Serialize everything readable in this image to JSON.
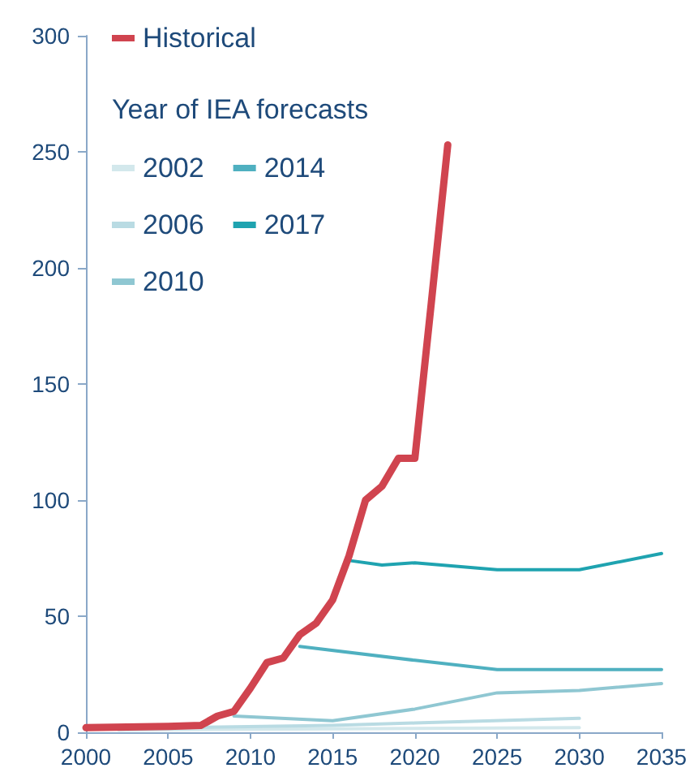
{
  "chart_data": {
    "type": "line",
    "legend_title": "Year of IEA forecasts",
    "xlim": [
      2000,
      2035
    ],
    "xticks": [
      2000,
      2005,
      2010,
      2015,
      2020,
      2025,
      2030,
      2035
    ],
    "ylim": [
      0,
      300
    ],
    "yticks": [
      0,
      50,
      100,
      150,
      200,
      250,
      300
    ],
    "grid": false,
    "legend": "top left",
    "marker": "none",
    "line_style": "solid",
    "series": [
      {
        "name": "Historical",
        "color": "#d0444f",
        "x": [
          2000,
          2005,
          2007,
          2008,
          2009,
          2010,
          2011,
          2012,
          2013,
          2014,
          2015,
          2016,
          2017,
          2018,
          2019,
          2020,
          2021,
          2022
        ],
        "values": [
          2,
          2.5,
          3,
          7,
          9,
          19,
          30,
          32,
          42,
          47,
          57,
          76,
          100,
          106,
          118,
          118,
          185,
          253
        ]
      },
      {
        "name": "2002",
        "color": "#d3e8ec",
        "x": [
          2002,
          2015,
          2030
        ],
        "values": [
          1,
          1.5,
          2
        ]
      },
      {
        "name": "2006",
        "color": "#b9dbe3",
        "x": [
          2006,
          2015,
          2020,
          2030
        ],
        "values": [
          2,
          3,
          4,
          6
        ]
      },
      {
        "name": "2010",
        "color": "#8fc7d2",
        "x": [
          2009,
          2015,
          2020,
          2025,
          2030,
          2035
        ],
        "values": [
          7,
          5,
          10,
          17,
          18,
          21
        ]
      },
      {
        "name": "2014",
        "color": "#4fb0c0",
        "x": [
          2013,
          2020,
          2025,
          2035
        ],
        "values": [
          37,
          31,
          27,
          27
        ]
      },
      {
        "name": "2017",
        "color": "#1fa3b0",
        "x": [
          2016,
          2018,
          2020,
          2025,
          2030,
          2035
        ],
        "values": [
          74,
          72,
          73,
          70,
          70,
          77
        ]
      }
    ]
  }
}
